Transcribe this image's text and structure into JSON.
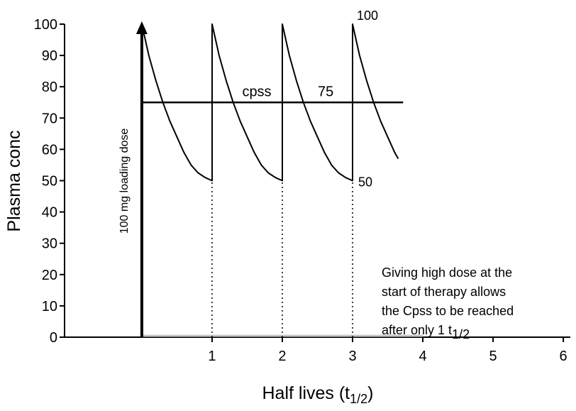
{
  "chart_data": {
    "type": "line",
    "xlabel": [
      "Half lives (t",
      "1/2",
      ")"
    ],
    "ylabel": "Plasma conc",
    "x": [
      0,
      0.1,
      0.2,
      0.3,
      0.4,
      0.5,
      0.6,
      0.7,
      0.8,
      0.9,
      1,
      1,
      1.1,
      1.2,
      1.3,
      1.4,
      1.5,
      1.6,
      1.7,
      1.8,
      1.9,
      2,
      2,
      2.1,
      2.2,
      2.3,
      2.4,
      2.5,
      2.6,
      2.7,
      2.8,
      2.9,
      3,
      3,
      3.1,
      3.2,
      3.3,
      3.4,
      3.5,
      3.6,
      3.65
    ],
    "series": [
      {
        "color": "#000000",
        "values": [
          100,
          90,
          82,
          75,
          69,
          64,
          59,
          55,
          52.5,
          51,
          50,
          100,
          90,
          82,
          75,
          69,
          64,
          59,
          55,
          52.5,
          51,
          50,
          100,
          90,
          82,
          75,
          69,
          64,
          59,
          55,
          52.5,
          51,
          50,
          100,
          90,
          82,
          75,
          69,
          64,
          59,
          57
        ]
      }
    ],
    "xlim": [
      -1.1,
      6.1
    ],
    "xticks": [
      1,
      2,
      3,
      4,
      5,
      6
    ],
    "ylim": [
      0,
      100
    ],
    "yticks": [
      0,
      10,
      20,
      30,
      40,
      50,
      60,
      70,
      80,
      90,
      100
    ],
    "reference_line": {
      "y": 75,
      "x_end": 3.72,
      "label": "cpss"
    },
    "loading_dose": {
      "x": 0,
      "y": 100,
      "label": "100 mg loading dose"
    },
    "dotted_lines": [
      {
        "x": 1,
        "y": 50
      },
      {
        "x": 2,
        "y": 50
      },
      {
        "x": 3,
        "y": 50
      }
    ],
    "baseline_highlight": [
      0,
      4
    ],
    "note": {
      "lines": [
        "Giving high dose at the",
        "start of therapy allows",
        "the Cpss to be reached",
        "after only 1 t"
      ],
      "sub": "1/2"
    }
  }
}
